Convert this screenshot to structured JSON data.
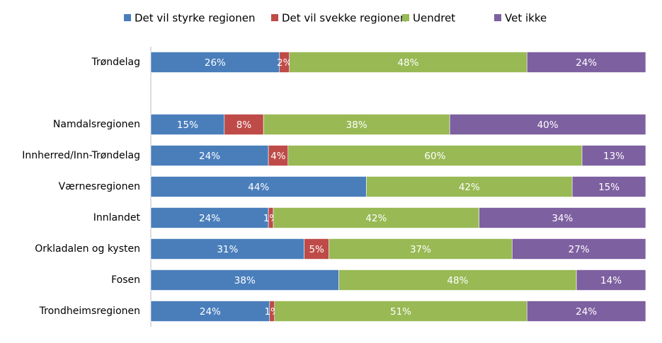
{
  "chart_data": {
    "type": "bar",
    "orientation": "horizontal",
    "categories": [
      "Trøndelag",
      null,
      "Namdalsregionen",
      "Innherred/Inn-Trøndelag",
      "Værnesregionen",
      "Innlandet",
      "Orkladalen og kysten",
      "Fosen",
      "Trondheimsregionen"
    ],
    "series": [
      {
        "name": "Det vil styrke regionen",
        "color": "#4a7ebb",
        "values": [
          26,
          null,
          15,
          24,
          44,
          24,
          31,
          38,
          24
        ],
        "value_labels": [
          "26%",
          null,
          "15%",
          "24%",
          "44%",
          "24%",
          "31%",
          "38%",
          "24%"
        ]
      },
      {
        "name": "Det vil svekke regionen",
        "color": "#be4b48",
        "values": [
          2,
          null,
          8,
          4,
          0,
          1,
          5,
          0,
          1
        ],
        "value_labels": [
          "2%",
          null,
          "8%",
          "4%",
          null,
          "1%",
          "5%",
          null,
          "1%"
        ]
      },
      {
        "name": "Uendret",
        "color": "#98b954",
        "values": [
          48,
          null,
          38,
          60,
          42,
          42,
          37,
          48,
          51
        ],
        "value_labels": [
          "48%",
          null,
          "38%",
          "60%",
          "42%",
          "42%",
          "37%",
          "48%",
          "51%"
        ]
      },
      {
        "name": "Vet ikke",
        "color": "#7d60a0",
        "values": [
          24,
          null,
          40,
          13,
          15,
          34,
          27,
          14,
          24
        ],
        "value_labels": [
          "24%",
          null,
          "40%",
          "13%",
          "15%",
          "34%",
          "27%",
          "14%",
          "24%"
        ]
      }
    ],
    "legend": "top"
  }
}
